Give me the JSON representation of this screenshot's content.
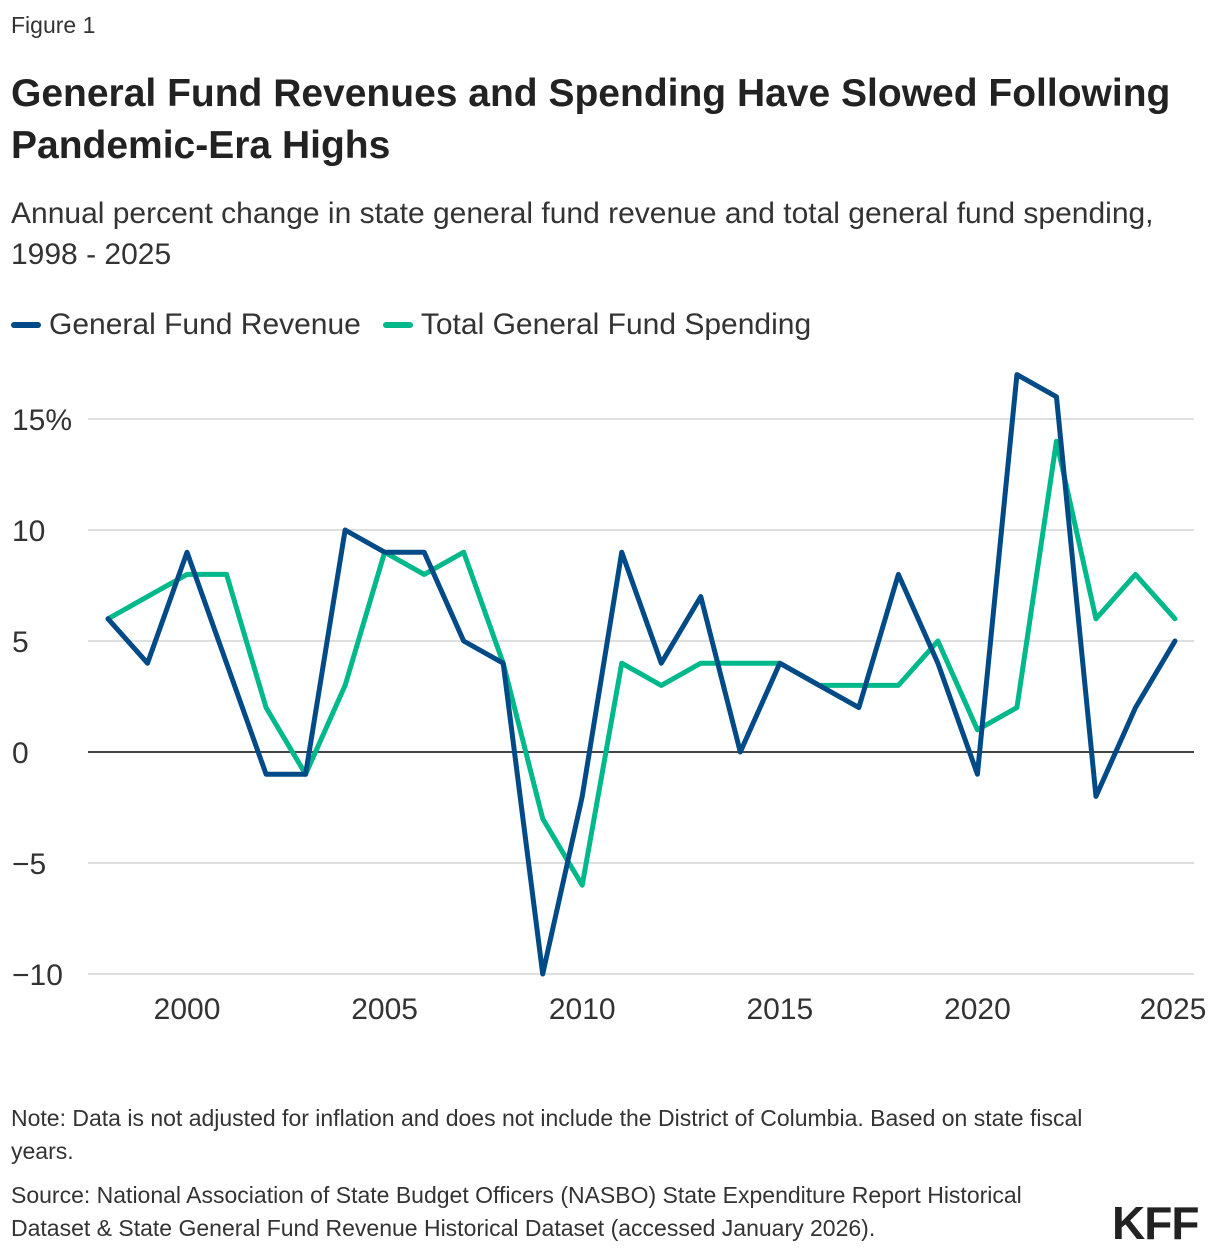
{
  "figure_label": "Figure 1",
  "title": "General Fund Revenues and Spending Have Slowed Following Pandemic-Era Highs",
  "subtitle": "Annual percent change in state general fund revenue and total general fund spending, 1998 - 2025",
  "note": "Note: Data is not adjusted for inflation and does not include the District of Columbia. Based on state fiscal years.",
  "source": "Source: National Association of State Budget Officers (NASBO) State Expenditure Report Historical Dataset & State General Fund Revenue Historical Dataset (accessed January 2026).",
  "logo": "KFF",
  "chart_data": {
    "type": "line",
    "xlabel": "",
    "ylabel": "",
    "xlim": [
      1998,
      2025
    ],
    "ylim": [
      -10,
      17
    ],
    "grid": true,
    "legend": "top-left",
    "x": [
      1998,
      1999,
      2000,
      2001,
      2002,
      2003,
      2004,
      2005,
      2006,
      2007,
      2008,
      2009,
      2010,
      2011,
      2012,
      2013,
      2014,
      2015,
      2016,
      2017,
      2018,
      2019,
      2020,
      2021,
      2022,
      2023,
      2024,
      2025
    ],
    "x_ticks": [
      {
        "value": 2000,
        "label": "2000"
      },
      {
        "value": 2005,
        "label": "2005"
      },
      {
        "value": 2010,
        "label": "2010"
      },
      {
        "value": 2015,
        "label": "2015"
      },
      {
        "value": 2020,
        "label": "2020"
      },
      {
        "value": 2025,
        "label": "2025"
      }
    ],
    "y_ticks": [
      {
        "value": 15,
        "label": "15%"
      },
      {
        "value": 10,
        "label": "10"
      },
      {
        "value": 5,
        "label": "5"
      },
      {
        "value": 0,
        "label": "0"
      },
      {
        "value": -5,
        "label": "−5"
      },
      {
        "value": -10,
        "label": "−10"
      }
    ],
    "series": [
      {
        "name": "General Fund Revenue",
        "color": "#004b87",
        "values": [
          6,
          4,
          9,
          4,
          -1,
          -1,
          10,
          9,
          9,
          5,
          4,
          -10,
          -2,
          9,
          4,
          7,
          0,
          4,
          3,
          2,
          8,
          4,
          -1,
          17,
          16,
          -2,
          2,
          5
        ]
      },
      {
        "name": "Total General Fund Spending",
        "color": "#00b98a",
        "values": [
          6,
          7,
          8,
          8,
          2,
          -1,
          3,
          9,
          8,
          9,
          4,
          -3,
          -6,
          4,
          3,
          4,
          4,
          4,
          3,
          3,
          3,
          5,
          1,
          2,
          14,
          6,
          8,
          6
        ]
      }
    ]
  }
}
